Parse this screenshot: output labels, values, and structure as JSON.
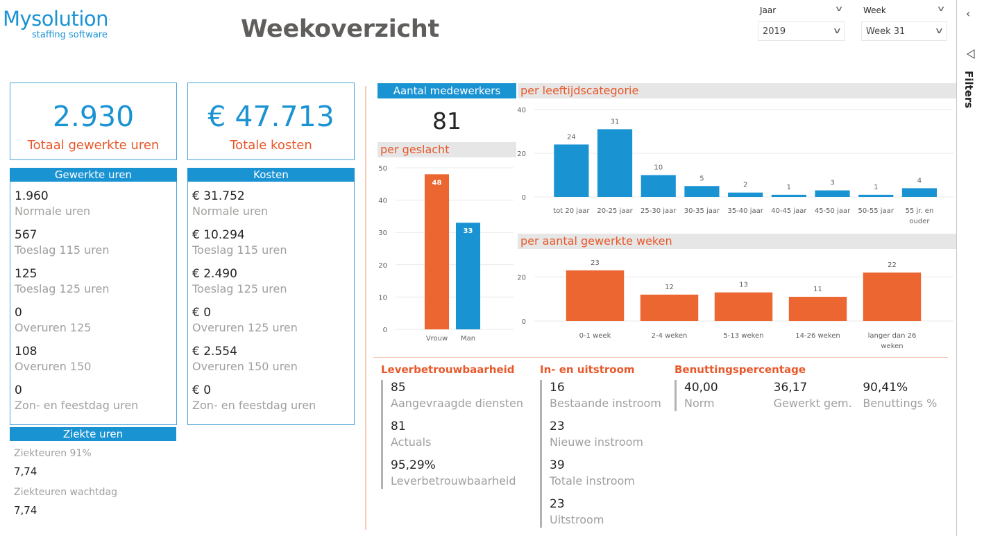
{
  "logo": {
    "main": "Mysolution",
    "sub": "staffing software"
  },
  "header": {
    "title": "Weekoverzicht"
  },
  "slicers": [
    {
      "label": "Jaar",
      "value": "2019"
    },
    {
      "label": "Week",
      "value": "Week 31"
    }
  ],
  "filters_pane": {
    "label": "Filters",
    "collapse_icon": "chevron-left-icon",
    "filter_icon": "funnel-icon"
  },
  "kpis": {
    "hours": {
      "value": "2.930",
      "label": "Totaal gewerkte uren"
    },
    "costs": {
      "value": "€ 47.713",
      "label": "Totale kosten"
    }
  },
  "hours_table": {
    "title": "Gewerkte uren",
    "rows": [
      {
        "value": "1.960",
        "label": "Normale uren"
      },
      {
        "value": "567",
        "label": "Toeslag 115 uren"
      },
      {
        "value": "125",
        "label": "Toeslag 125 uren"
      },
      {
        "value": "0",
        "label": "Overuren 125"
      },
      {
        "value": "108",
        "label": "Overuren 150"
      },
      {
        "value": "0",
        "label": "Zon- en feestdag uren"
      }
    ]
  },
  "costs_table": {
    "title": "Kosten",
    "rows": [
      {
        "value": "€ 31.752",
        "label": "Normale uren"
      },
      {
        "value": "€ 10.294",
        "label": "Toeslag 115 uren"
      },
      {
        "value": "€ 2.490",
        "label": "Toeslag 125 uren"
      },
      {
        "value": "€ 0",
        "label": "Overuren 125 uren"
      },
      {
        "value": "€ 2.554",
        "label": "Overuren 150 uren"
      },
      {
        "value": "€ 0",
        "label": "Zon- en feestdag uren"
      }
    ]
  },
  "sick": {
    "title": "Ziekte uren",
    "rows": [
      {
        "label": "Ziekteuren 91%",
        "value": "7,74"
      },
      {
        "label": "Ziekteuren wachtdag",
        "value": "7,74"
      }
    ]
  },
  "employees": {
    "title": "Aantal medewerkers",
    "value": "81"
  },
  "colors": {
    "blue": "#1a93d3",
    "orange": "#e8582a",
    "bar_orange": "#eb6630"
  },
  "chart_data": [
    {
      "type": "bar",
      "title": "per geslacht",
      "categories": [
        "Vrouw",
        "Man"
      ],
      "values": [
        48,
        33
      ],
      "colors": [
        "#eb6630",
        "#1a93d3"
      ],
      "ylim": [
        0,
        50
      ],
      "yticks": [
        0,
        10,
        20,
        30,
        40,
        50
      ],
      "grid": true
    },
    {
      "type": "bar",
      "title": "per leeftijdscategorie",
      "categories": [
        "tot 20 jaar",
        "20-25 jaar",
        "25-30 jaar",
        "30-35 jaar",
        "35-40 jaar",
        "40-45 jaar",
        "45-50 jaar",
        "50-55 jaar",
        "55 jr. en ouder"
      ],
      "values": [
        24,
        31,
        10,
        5,
        2,
        1,
        3,
        1,
        4
      ],
      "color": "#1a93d3",
      "ylim": [
        0,
        40
      ],
      "yticks": [
        0,
        20,
        40
      ],
      "grid": true
    },
    {
      "type": "bar",
      "title": "per aantal gewerkte weken",
      "categories": [
        "0-1 week",
        "2-4 weken",
        "5-13 weken",
        "14-26 weken",
        "langer dan 26 weken"
      ],
      "values": [
        23,
        12,
        13,
        11,
        22
      ],
      "color": "#eb6630",
      "ylim": [
        0,
        28
      ],
      "yticks": [
        0,
        20
      ],
      "grid": true
    }
  ],
  "reliability": {
    "title": "Leverbetrouwbaarheid",
    "rows": [
      {
        "value": "85",
        "label": "Aangevraagde diensten"
      },
      {
        "value": "81",
        "label": "Actuals"
      },
      {
        "value": "95,29%",
        "label": "Leverbetrouwbaarheid"
      }
    ]
  },
  "flow": {
    "title": "In- en uitstroom",
    "rows": [
      {
        "value": "16",
        "label": "Bestaande instroom"
      },
      {
        "value": "23",
        "label": "Nieuwe instroom"
      },
      {
        "value": "39",
        "label": "Totale instroom"
      },
      {
        "value": "23",
        "label": "Uitstroom"
      }
    ]
  },
  "utilization": {
    "title": "Benuttingspercentage",
    "items": [
      {
        "value": "40,00",
        "label": "Norm"
      },
      {
        "value": "36,17",
        "label": "Gewerkt gem."
      },
      {
        "value": "90,41%",
        "label": "Benuttings %"
      }
    ]
  }
}
